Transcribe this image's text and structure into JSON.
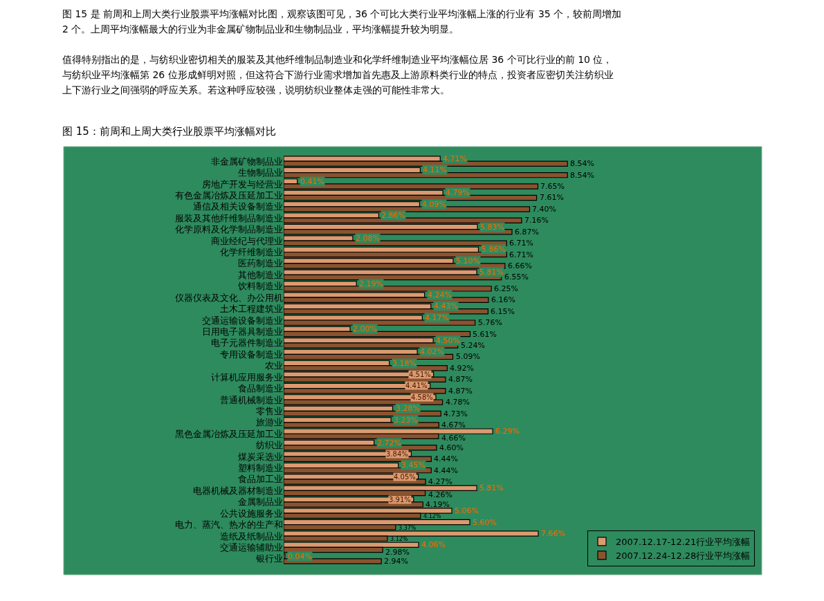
{
  "chart_data": {
    "type": "bar",
    "orientation": "horizontal",
    "title": "图 15：前周和上周大类行业股票平均涨幅对比",
    "annotations": [
      "图 15 是 前周和上周大类行业股票平均涨幅对比图，观察该图可见，36 个可比大类行业平均涨幅上涨的行业有 35 个，较前周增加",
      "2 个。上周平均涨幅最大的行业为非金属矿物制品业和生物制品业，平均涨幅提升较为明显。",
      "值得特别指出的是，与纺织业密切相关的服装及其他纤维制品制造业和化学纤维制造业平均涨幅位居 36 个可比行业的前 10 位，",
      "与纺织业平均涨幅第 26 位形成鲜明对照，但这符合下游行业需求增加首先惠及上游原料类行业的特点，投资者应密切关注纺织业",
      "上下游行业之间强弱的呼应关系。若这种呼应较强，说明纺织业整体走强的可能性非常大。"
    ],
    "categories": [
      "非金属矿物制品业",
      "生物制品业",
      "房地产开发与经营业",
      "有色金属冶炼及压延加工业",
      "通信及相关设备制造业",
      "服装及其他纤维制品制造业",
      "化学原料及化学制品制造业",
      "商业经纪与代理业",
      "化学纤维制造业",
      "医药制造业",
      "其他制造业",
      "饮料制造业",
      "仪器仪表及文化、办公用机",
      "土木工程建筑业",
      "交通运输设备制造业",
      "日用电子器具制造业",
      "电子元器件制造业",
      "专用设备制造业",
      "农业",
      "计算机应用服务业",
      "食品制造业",
      "普通机械制造业",
      "零售业",
      "旅游业",
      "黑色金属冶炼及压延加工业",
      "纺织业",
      "煤炭采选业",
      "塑料制造业",
      "食品加工业",
      "电器机械及器材制造业",
      "金属制品业",
      "公共设施服务业",
      "电力、蒸汽、热水的生产和",
      "造纸及纸制品业",
      "交通运输辅助业",
      "银行业"
    ],
    "series": [
      {
        "name": "2007.12.17-12.21行业平均涨幅",
        "color": "#dc9a70",
        "values": [
          4.71,
          4.11,
          0.41,
          4.79,
          4.09,
          2.86,
          5.83,
          2.08,
          5.86,
          5.1,
          5.81,
          2.19,
          4.24,
          4.43,
          4.17,
          2.0,
          4.5,
          4.02,
          3.18,
          4.51,
          4.41,
          4.58,
          3.28,
          3.23,
          6.29,
          2.72,
          3.84,
          3.45,
          4.05,
          5.81,
          3.91,
          5.06,
          5.6,
          7.66,
          4.06,
          0.04
        ],
        "value_labels": [
          "4.71%",
          "4.11%",
          "0.41%",
          "4.79%",
          "4.09%",
          "2.86%",
          "5.83%",
          "2.08%",
          "5.86%",
          "5.10%",
          "5.81%",
          "2.19%",
          "4.24%",
          "4.43%",
          "4.17%",
          "2.00%",
          "4.50%",
          "4.02%",
          "3.18%",
          "4.51%",
          "4.41%",
          "4.58%",
          "3.28%",
          "3.23%",
          "6.29%",
          "2.72%",
          "3.84%",
          "3.45%",
          "4.05%",
          "5.81%",
          "3.91%",
          "5.06%",
          "5.60%",
          "7.66%",
          "4.06%",
          "0.04%"
        ]
      },
      {
        "name": "2007.12.24-12.28行业平均涨幅",
        "color": "#8a5330",
        "values": [
          8.54,
          8.54,
          7.65,
          7.61,
          7.4,
          7.16,
          6.87,
          6.71,
          6.71,
          6.66,
          6.55,
          6.25,
          6.16,
          6.15,
          5.76,
          5.61,
          5.24,
          5.09,
          4.92,
          4.87,
          4.87,
          4.78,
          4.73,
          4.67,
          4.66,
          4.6,
          4.44,
          4.44,
          4.27,
          4.26,
          4.19,
          4.12,
          3.37,
          3.12,
          2.98,
          2.94
        ],
        "value_labels": [
          "8.54%",
          "8.54%",
          "7.65%",
          "7.61%",
          "7.40%",
          "7.16%",
          "6.87%",
          "6.71%",
          "6.71%",
          "6.66%",
          "6.55%",
          "6.25%",
          "6.16%",
          "6.15%",
          "5.76%",
          "5.61%",
          "5.24%",
          "5.09%",
          "4.92%",
          "4.87%",
          "4.87%",
          "4.78%",
          "4.73%",
          "4.67%",
          "4.66%",
          "4.60%",
          "4.44%",
          "4.44%",
          "4.27%",
          "4.26%",
          "4.19%",
          "4.12%",
          "3.37%",
          "3.12%",
          "2.98%",
          "2.94%"
        ]
      }
    ],
    "legend": "bottom right",
    "grid": false
  }
}
